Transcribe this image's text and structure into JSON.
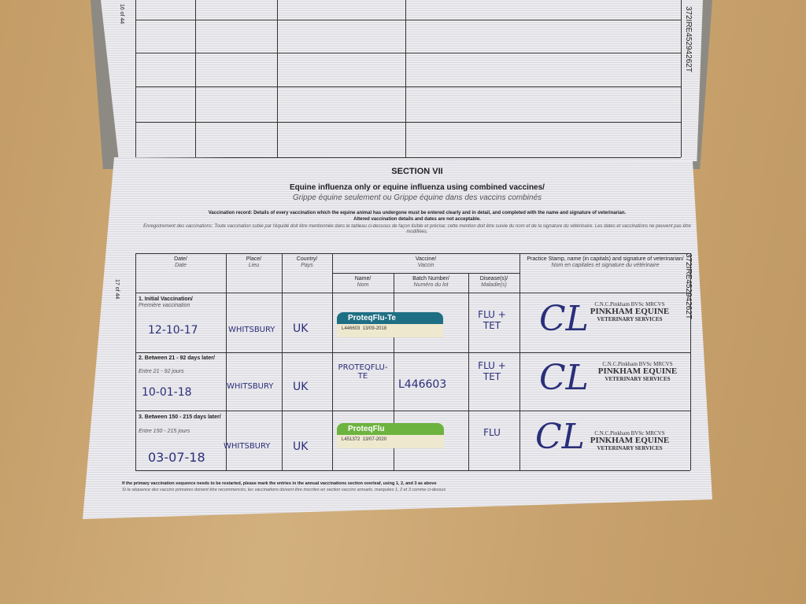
{
  "page_numbers": {
    "top": "16 of 44",
    "bottom": "17 of 44"
  },
  "passport_id": "372IRE45294262T",
  "section": {
    "title": "SECTION VII",
    "subtitle_en": "Equine influenza only or equine influenza using combined vaccines/",
    "subtitle_fr": "Grippe équine seulement ou Grippe équine dans des vaccins combinés"
  },
  "instructions": {
    "en1": "Vaccination record: Details of every vaccination which the equine animal has undergone must be entered clearly and in detail, and completed with the name and signature of veterinarian.",
    "en2": "Altered vaccination details and dates are not acceptable.",
    "fr": "Enregistrement des vaccinations: Toute vaccination subie par l'équidé doit être mentionnée dans le tableau ci-dessous de façon lisible et précise; cette mention doit être suivie du nom et de la signature du vétérinaire. Les dates et vaccinations ne peuvent pas être modifiées."
  },
  "headers": {
    "date": "Date/",
    "date_fr": "Date",
    "place": "Place/",
    "place_fr": "Lieu",
    "country": "Country/",
    "country_fr": "Pays",
    "vaccine": "Vaccine/",
    "vaccine_fr": "Vaccin",
    "name": "Name/",
    "name_fr": "Nom",
    "batch": "Batch Number/",
    "batch_fr": "Numéro du lot",
    "disease": "Disease(s)/",
    "disease_fr": "Maladie(s)",
    "stamp": "Practice Stamp, name (in capitals) and signature of veterinarian/",
    "stamp_fr": "Nom en capitales et signature du vétérinaire"
  },
  "rows": [
    {
      "label": "1. Initial Vaccination/",
      "label_fr": "Première vaccination",
      "date": "12-10-17",
      "place": "WHITSBURY",
      "country": "UK",
      "vaccine_label": {
        "brand": "ProteqFlu-Te",
        "batch": "L446603",
        "exp": "13/09-2018",
        "color": "#1f6f84"
      },
      "disease": "FLU + TET"
    },
    {
      "label": "2. Between 21 - 92 days later/",
      "label_fr": "Entre 21 - 92 jours",
      "date": "10-01-18",
      "place": "WHITSBURY",
      "country": "UK",
      "name": "PROTEQFLU-TE",
      "batch": "L446603",
      "disease": "FLU + TET"
    },
    {
      "label": "3. Between 150 - 215 days later/",
      "label_fr": "Entre 150 - 215 jours",
      "date": "03-07-18",
      "place": "WHITSBURY",
      "country": "UK",
      "vaccine_label": {
        "brand": "ProteqFlu",
        "batch": "L451372",
        "exp": "13/07-2020",
        "color": "#6db33f"
      },
      "disease": "FLU"
    }
  ],
  "stamp": {
    "line1": "C.N.C.Pinkham BVSc MRCVS",
    "line2": "PINKHAM EQUINE",
    "line3": "VETERINARY SERVICES",
    "signature": "CL"
  },
  "footer": {
    "en": "If the primary vaccination sequence needs to be restarted, please mark the entries in the annual vaccinations section overleaf, using 1, 2, and 3 as above",
    "fr": "Si la séquence des vaccins primaires doivent être recommencés, les vaccinations doivent être inscrites en section vaccins annuels, marquées 1, 2 et 3 comme ci-dessus"
  }
}
